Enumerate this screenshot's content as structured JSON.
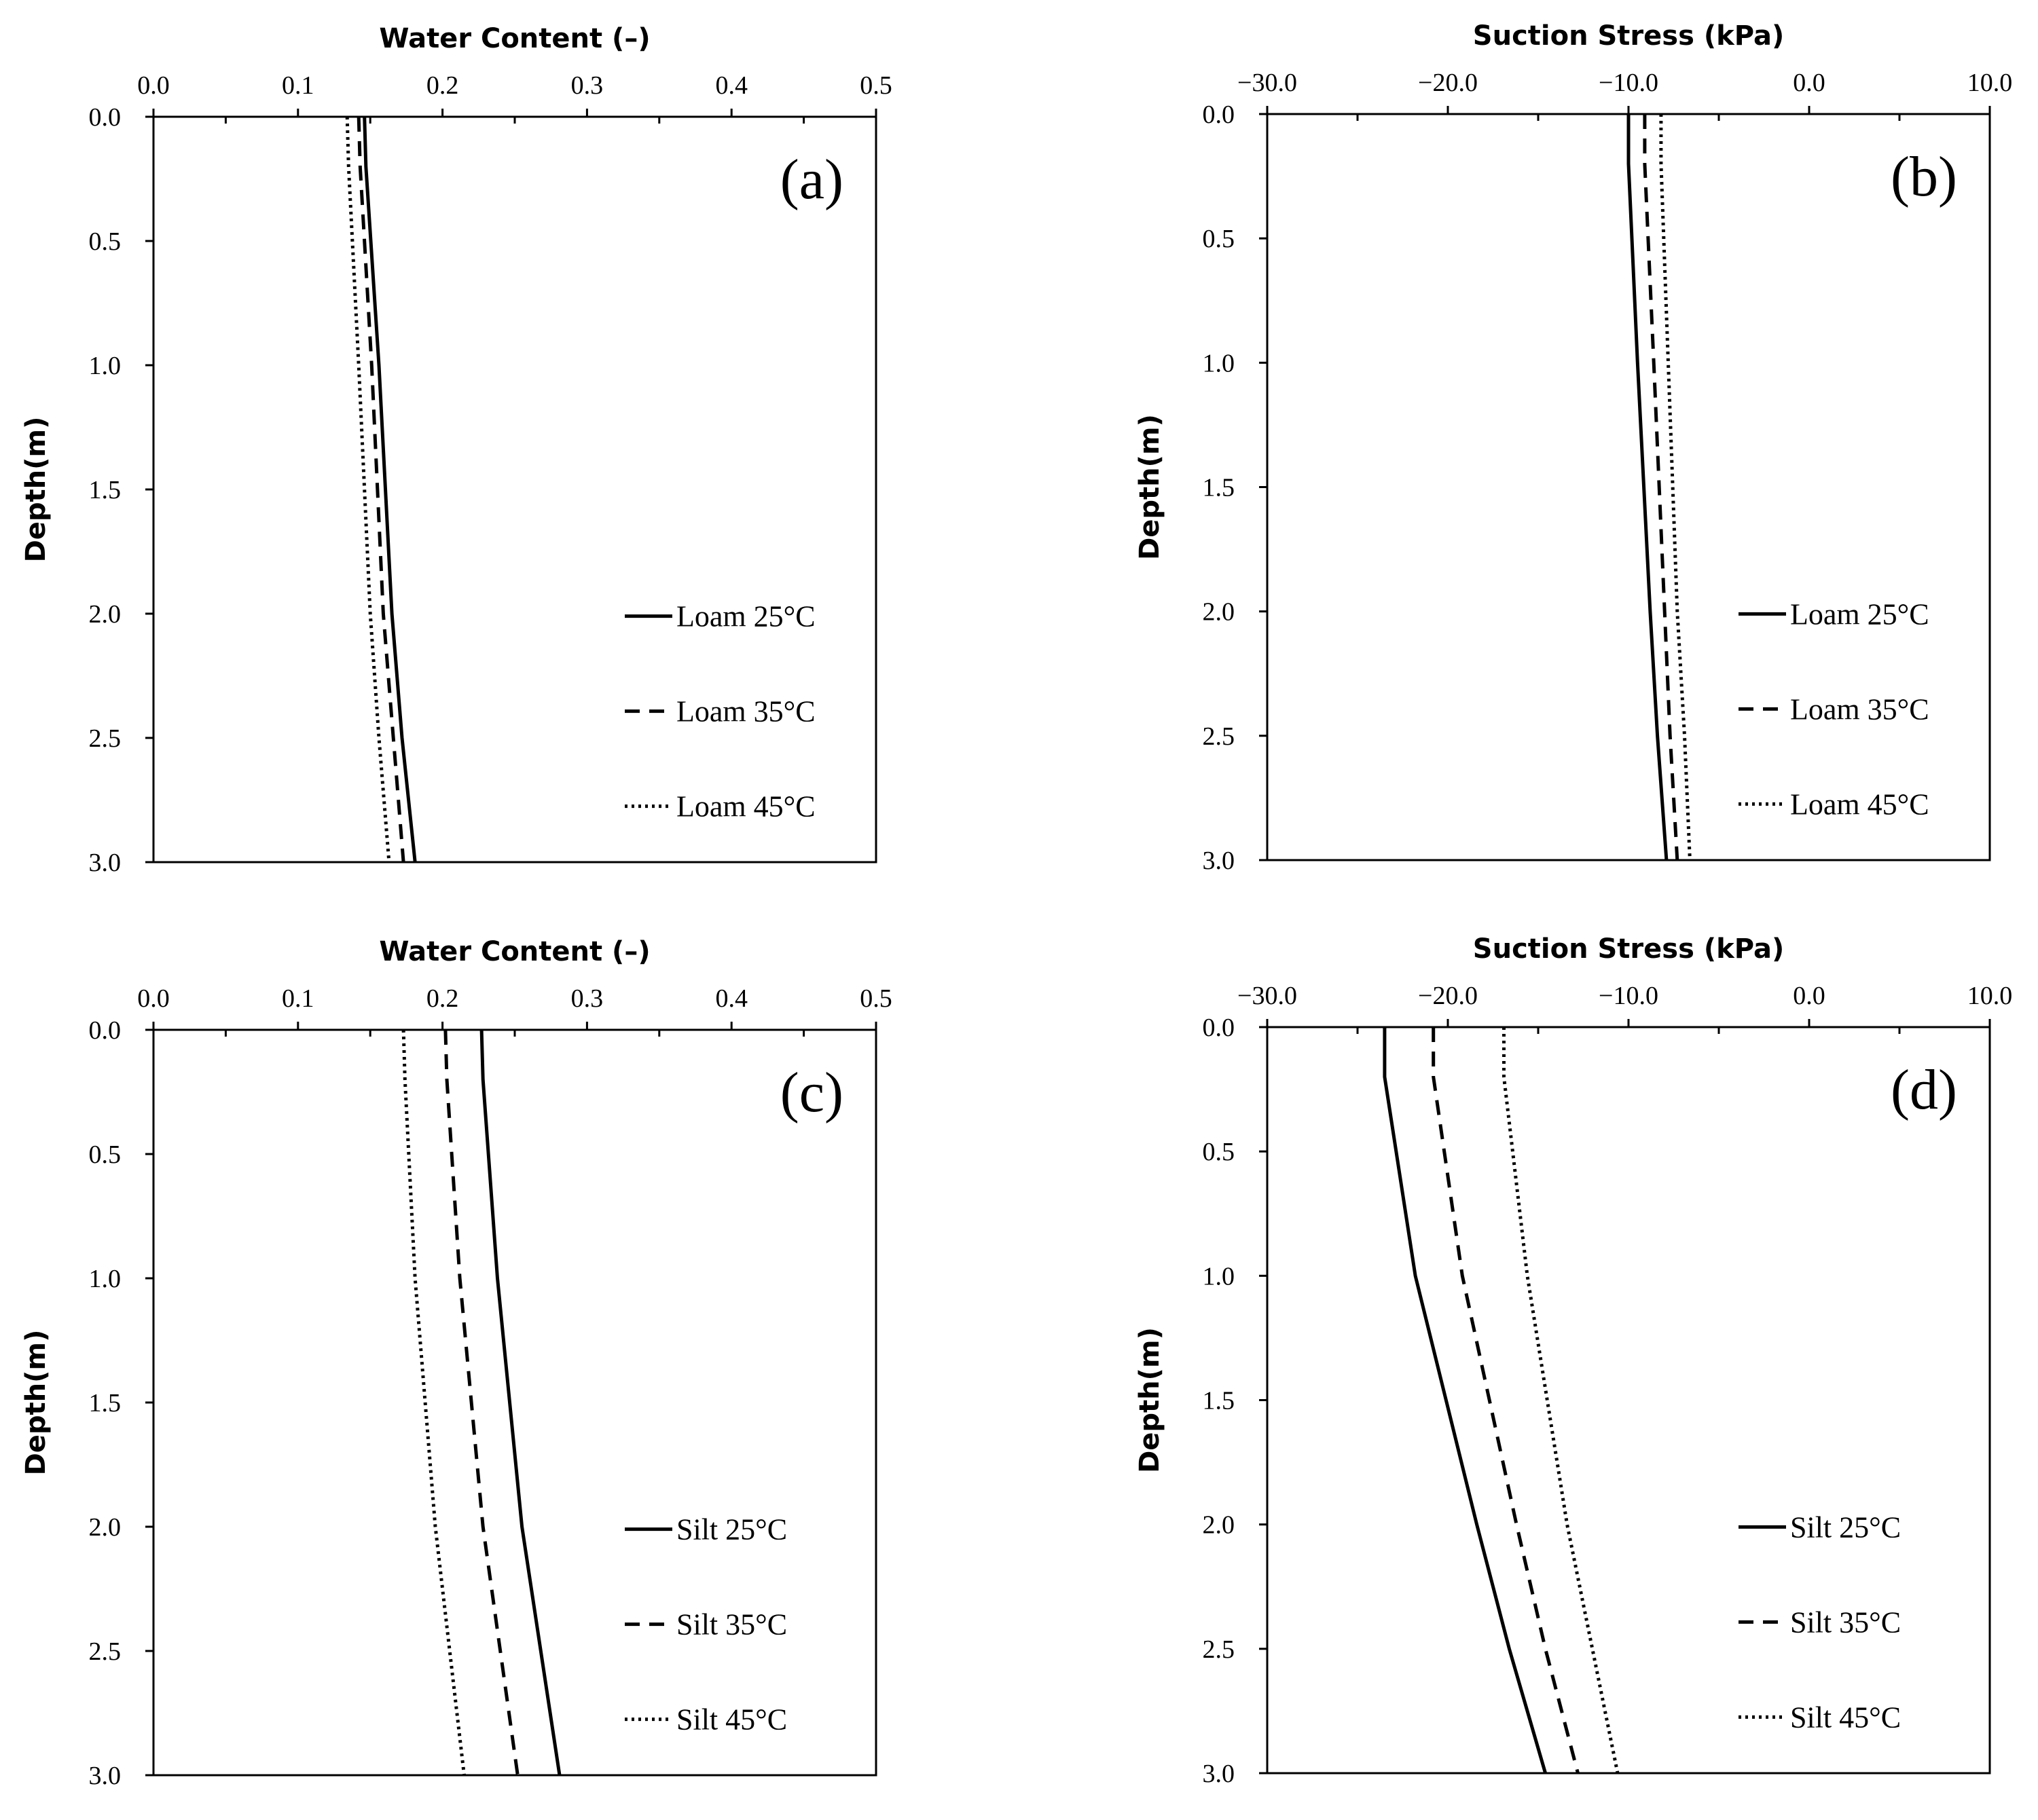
{
  "chart_data": [
    {
      "type": "line",
      "panel_label": "(a)",
      "title": "",
      "xlabel": "Water Content (–)",
      "ylabel": "Depth(m)",
      "xlim": [
        0.0,
        0.5
      ],
      "ylim": [
        3.0,
        0.0
      ],
      "xticks": [
        "0.0",
        "0.1",
        "0.2",
        "0.3",
        "0.4",
        "0.5"
      ],
      "yticks": [
        "0.0",
        "0.5",
        "1.0",
        "1.5",
        "2.0",
        "2.5",
        "3.0"
      ],
      "x_axis_position": "top",
      "legend_position": "lower-right",
      "series": [
        {
          "name": "Loam 25°C",
          "style": "solid",
          "points": [
            [
              0.146,
              0.0
            ],
            [
              0.147,
              0.2
            ],
            [
              0.156,
              1.0
            ],
            [
              0.165,
              2.0
            ],
            [
              0.172,
              2.5
            ],
            [
              0.181,
              3.0
            ]
          ]
        },
        {
          "name": "Loam 35°C",
          "style": "dashed",
          "points": [
            [
              0.142,
              0.0
            ],
            [
              0.143,
              0.2
            ],
            [
              0.151,
              1.0
            ],
            [
              0.159,
              2.0
            ],
            [
              0.166,
              2.5
            ],
            [
              0.173,
              3.0
            ]
          ]
        },
        {
          "name": "Loam 45°C",
          "style": "dotted",
          "points": [
            [
              0.134,
              0.0
            ],
            [
              0.135,
              0.2
            ],
            [
              0.142,
              1.0
            ],
            [
              0.15,
              2.0
            ],
            [
              0.156,
              2.5
            ],
            [
              0.163,
              3.0
            ]
          ]
        }
      ]
    },
    {
      "type": "line",
      "panel_label": "(b)",
      "title": "",
      "xlabel": "Suction Stress (kPa)",
      "ylabel": "Depth(m)",
      "xlim": [
        -30.0,
        10.0
      ],
      "ylim": [
        3.0,
        0.0
      ],
      "xticks": [
        "−30.0",
        "−20.0",
        "−10.0",
        "0.0",
        "10.0"
      ],
      "yticks": [
        "0.0",
        "0.5",
        "1.0",
        "1.5",
        "2.0",
        "2.5",
        "3.0"
      ],
      "x_axis_position": "top",
      "legend_position": "lower-right",
      "series": [
        {
          "name": "Loam 25°C",
          "style": "solid",
          "points": [
            [
              -10.0,
              0.0
            ],
            [
              -10.0,
              0.2
            ],
            [
              -9.5,
              1.0
            ],
            [
              -8.8,
              2.0
            ],
            [
              -8.4,
              2.5
            ],
            [
              -7.9,
              3.0
            ]
          ]
        },
        {
          "name": "Loam 35°C",
          "style": "dashed",
          "points": [
            [
              -9.1,
              0.0
            ],
            [
              -9.1,
              0.2
            ],
            [
              -8.6,
              1.0
            ],
            [
              -8.0,
              2.0
            ],
            [
              -7.7,
              2.5
            ],
            [
              -7.3,
              3.0
            ]
          ]
        },
        {
          "name": "Loam 45°C",
          "style": "dotted",
          "points": [
            [
              -8.2,
              0.0
            ],
            [
              -8.2,
              0.2
            ],
            [
              -7.8,
              1.0
            ],
            [
              -7.3,
              2.0
            ],
            [
              -6.9,
              2.5
            ],
            [
              -6.6,
              3.0
            ]
          ]
        }
      ]
    },
    {
      "type": "line",
      "panel_label": "(c)",
      "title": "",
      "xlabel": "Water Content (–)",
      "ylabel": "Depth(m)",
      "xlim": [
        0.0,
        0.5
      ],
      "ylim": [
        3.0,
        0.0
      ],
      "xticks": [
        "0.0",
        "0.1",
        "0.2",
        "0.3",
        "0.4",
        "0.5"
      ],
      "yticks": [
        "0.0",
        "0.5",
        "1.0",
        "1.5",
        "2.0",
        "2.5",
        "3.0"
      ],
      "x_axis_position": "top",
      "legend_position": "lower-right",
      "series": [
        {
          "name": "Silt 25°C",
          "style": "solid",
          "points": [
            [
              0.227,
              0.0
            ],
            [
              0.228,
              0.2
            ],
            [
              0.238,
              1.0
            ],
            [
              0.255,
              2.0
            ],
            [
              0.268,
              2.5
            ],
            [
              0.281,
              3.0
            ]
          ]
        },
        {
          "name": "Silt 35°C",
          "style": "dashed",
          "points": [
            [
              0.202,
              0.0
            ],
            [
              0.203,
              0.2
            ],
            [
              0.212,
              1.0
            ],
            [
              0.228,
              2.0
            ],
            [
              0.24,
              2.5
            ],
            [
              0.252,
              3.0
            ]
          ]
        },
        {
          "name": "Silt 45°C",
          "style": "dotted",
          "points": [
            [
              0.173,
              0.0
            ],
            [
              0.174,
              0.2
            ],
            [
              0.181,
              1.0
            ],
            [
              0.195,
              2.0
            ],
            [
              0.205,
              2.5
            ],
            [
              0.215,
              3.0
            ]
          ]
        }
      ]
    },
    {
      "type": "line",
      "panel_label": "(d)",
      "title": "",
      "xlabel": "Suction Stress (kPa)",
      "ylabel": "Depth(m)",
      "xlim": [
        -30.0,
        10.0
      ],
      "ylim": [
        3.0,
        0.0
      ],
      "xticks": [
        "−30.0",
        "−20.0",
        "−10.0",
        "0.0",
        "10.0"
      ],
      "yticks": [
        "0.0",
        "0.5",
        "1.0",
        "1.5",
        "2.0",
        "2.5",
        "3.0"
      ],
      "x_axis_position": "top",
      "legend_position": "lower-right",
      "series": [
        {
          "name": "Silt 25°C",
          "style": "solid",
          "points": [
            [
              -23.5,
              0.0
            ],
            [
              -23.5,
              0.2
            ],
            [
              -21.8,
              1.0
            ],
            [
              -18.4,
              2.0
            ],
            [
              -16.6,
              2.5
            ],
            [
              -14.6,
              3.0
            ]
          ]
        },
        {
          "name": "Silt 35°C",
          "style": "dashed",
          "points": [
            [
              -20.8,
              0.0
            ],
            [
              -20.8,
              0.2
            ],
            [
              -19.2,
              1.0
            ],
            [
              -16.2,
              2.0
            ],
            [
              -14.6,
              2.5
            ],
            [
              -12.8,
              3.0
            ]
          ]
        },
        {
          "name": "Silt 45°C",
          "style": "dotted",
          "points": [
            [
              -16.9,
              0.0
            ],
            [
              -16.9,
              0.2
            ],
            [
              -15.6,
              1.0
            ],
            [
              -13.4,
              2.0
            ],
            [
              -12.0,
              2.5
            ],
            [
              -10.6,
              3.0
            ]
          ]
        }
      ]
    }
  ]
}
